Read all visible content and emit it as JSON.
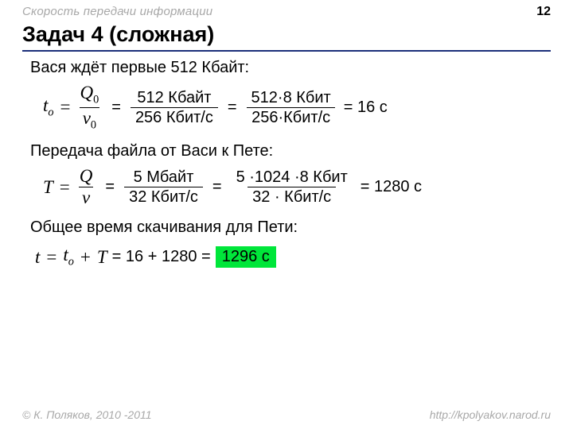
{
  "page": {
    "subtitle": "Скорость передачи информации",
    "number": "12",
    "title": "Задач 4 (сложная)"
  },
  "body": {
    "p1": "Вася ждёт первые 512 Кбайт:",
    "eq1": {
      "lhs": "t",
      "lhs_sub": "о",
      "rhs_num": "Q",
      "rhs_num_sub": "0",
      "rhs_den": "ν",
      "rhs_den_sub": "0",
      "f1_num": "512 Кбайт",
      "f1_den": "256 Кбит/с",
      "f2_num": "512·8 Кбит",
      "f2_den": "256·Кбит/с",
      "result": "16 с"
    },
    "p2": "Передача файла от Васи к Пете:",
    "eq2": {
      "lhs": "T",
      "rhs_num": "Q",
      "rhs_den": "ν",
      "f1_num": "5 Мбайт",
      "f1_den": "32 Кбит/с",
      "f2_num": "5 ·1024 ·8 Кбит",
      "f2_den": "32 · Кбит/с",
      "result": "1280 с"
    },
    "p3": "Общее время скачивания для Пети:",
    "eq3": {
      "lhs_a": "t",
      "lhs_b": "t",
      "lhs_b_sub": "о",
      "lhs_c": "T",
      "sum": "16 + 1280",
      "answer": "1296 с"
    }
  },
  "footer": {
    "copyright": "© К. Поляков, 2010 -2011",
    "url": "http://kpolyakov.narod.ru"
  },
  "style": {
    "highlight_bg": "#00e63a",
    "rule_color": "#1b2f7a",
    "muted_text": "#a8a8a8"
  }
}
